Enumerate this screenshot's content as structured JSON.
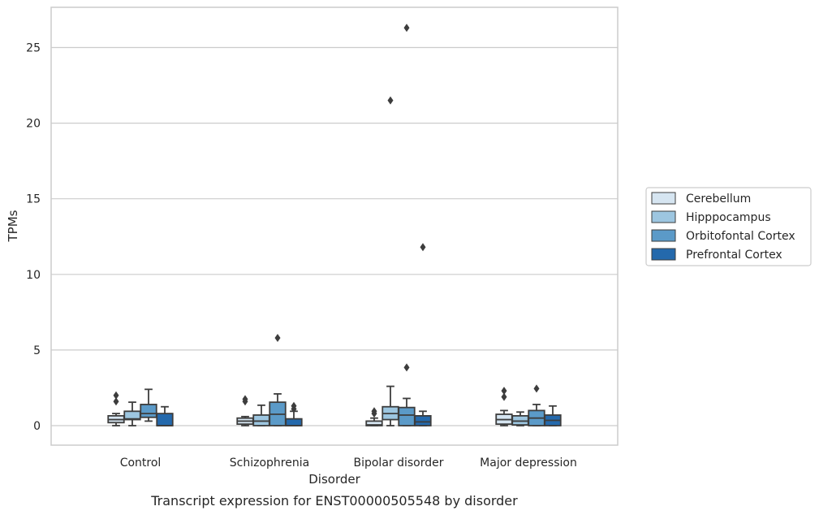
{
  "caption": "Transcript expression for ENST00000505548 by disorder",
  "chart_data": {
    "type": "box",
    "xlabel": "Disorder",
    "ylabel": "TPMs",
    "ylim": [
      -1.25,
      27.7
    ],
    "yticks": [
      0,
      5,
      10,
      15,
      20,
      25
    ],
    "grid": true,
    "legend_position": "right",
    "categories": [
      "Control",
      "Schizophrenia",
      "Bipolar disorder",
      "Major depression"
    ],
    "series": [
      {
        "name": "Cerebellum",
        "color": "#d6e5f1",
        "boxes": [
          {
            "whislo": 0.0,
            "q1": 0.2,
            "med": 0.4,
            "q3": 0.65,
            "whishi": 0.8,
            "fliers": [
              1.6,
              2.0
            ]
          },
          {
            "whislo": 0.0,
            "q1": 0.1,
            "med": 0.3,
            "q3": 0.5,
            "whishi": 0.6,
            "fliers": [
              1.6,
              1.75
            ]
          },
          {
            "whislo": 0.0,
            "q1": 0.0,
            "med": 0.05,
            "q3": 0.3,
            "whishi": 0.5,
            "fliers": [
              0.8,
              0.95
            ]
          },
          {
            "whislo": 0.0,
            "q1": 0.1,
            "med": 0.4,
            "q3": 0.75,
            "whishi": 1.0,
            "fliers": [
              1.9,
              2.3
            ]
          }
        ]
      },
      {
        "name": "Hipppocampus",
        "color": "#9dc6e0",
        "boxes": [
          {
            "whislo": 0.0,
            "q1": 0.4,
            "med": 0.45,
            "q3": 0.95,
            "whishi": 1.55,
            "fliers": []
          },
          {
            "whislo": 0.0,
            "q1": 0.0,
            "med": 0.3,
            "q3": 0.7,
            "whishi": 1.35,
            "fliers": []
          },
          {
            "whislo": 0.0,
            "q1": 0.4,
            "med": 0.8,
            "q3": 1.25,
            "whishi": 2.6,
            "fliers": [
              21.5
            ]
          },
          {
            "whislo": 0.0,
            "q1": 0.05,
            "med": 0.3,
            "q3": 0.65,
            "whishi": 0.9,
            "fliers": []
          }
        ]
      },
      {
        "name": "Orbitofontal Cortex",
        "color": "#5b9ac8",
        "boxes": [
          {
            "whislo": 0.3,
            "q1": 0.55,
            "med": 0.8,
            "q3": 1.4,
            "whishi": 2.4,
            "fliers": []
          },
          {
            "whislo": 0.0,
            "q1": 0.0,
            "med": 0.75,
            "q3": 1.55,
            "whishi": 2.1,
            "fliers": [
              5.8
            ]
          },
          {
            "whislo": 0.0,
            "q1": 0.0,
            "med": 0.7,
            "q3": 1.2,
            "whishi": 1.8,
            "fliers": [
              3.85,
              26.3
            ]
          },
          {
            "whislo": 0.0,
            "q1": 0.0,
            "med": 0.5,
            "q3": 1.0,
            "whishi": 1.4,
            "fliers": [
              2.45
            ]
          }
        ]
      },
      {
        "name": "Prefrontal Cortex",
        "color": "#2469ac",
        "boxes": [
          {
            "whislo": 0.0,
            "q1": 0.0,
            "med": 0.0,
            "q3": 0.8,
            "whishi": 1.25,
            "fliers": []
          },
          {
            "whislo": 0.0,
            "q1": 0.0,
            "med": 0.0,
            "q3": 0.45,
            "whishi": 0.95,
            "fliers": [
              1.1,
              1.3
            ]
          },
          {
            "whislo": 0.0,
            "q1": 0.0,
            "med": 0.25,
            "q3": 0.65,
            "whishi": 0.95,
            "fliers": [
              11.8
            ]
          },
          {
            "whislo": 0.0,
            "q1": 0.0,
            "med": 0.35,
            "q3": 0.7,
            "whishi": 1.3,
            "fliers": []
          }
        ]
      }
    ]
  }
}
